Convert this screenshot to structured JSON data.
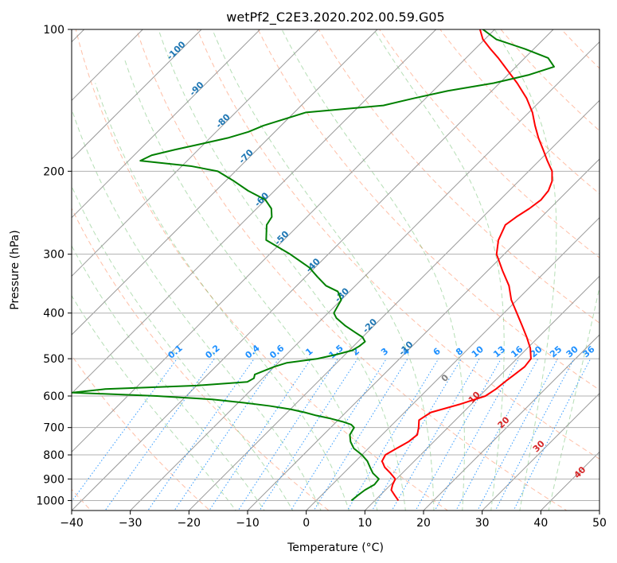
{
  "chart_data": {
    "type": "line",
    "title": "wetPf2_C2E3.2020.202.00.59.G05",
    "xlabel": "Temperature (°C)",
    "ylabel": "Pressure (hPa)",
    "xlim": [
      -40,
      50
    ],
    "ylim": [
      1050,
      100
    ],
    "y_scale": "log",
    "x_ticks": [
      -40,
      -30,
      -20,
      -10,
      0,
      10,
      20,
      30,
      40,
      50
    ],
    "y_ticks": [
      100,
      200,
      300,
      400,
      500,
      600,
      700,
      800,
      900,
      1000
    ],
    "grid": true,
    "skew_factor": 1.0,
    "series": [
      {
        "role": "temperature",
        "color": "#ff0000",
        "pressure": [
          1000,
          975,
          950,
          925,
          900,
          875,
          850,
          825,
          800,
          775,
          750,
          725,
          700,
          675,
          650,
          625,
          600,
          580,
          560,
          540,
          520,
          500,
          475,
          450,
          425,
          400,
          375,
          350,
          325,
          300,
          280,
          260,
          250,
          240,
          230,
          220,
          210,
          200,
          190,
          180,
          170,
          160,
          150,
          140,
          130,
          120,
          115,
          110,
          105,
          100
        ],
        "temperature": [
          14.0,
          12.5,
          11.0,
          10.3,
          9.8,
          8.0,
          6.0,
          4.5,
          4.0,
          4.8,
          5.7,
          6.0,
          5.0,
          3.8,
          4.5,
          8.0,
          11.0,
          11.6,
          11.9,
          12.3,
          12.7,
          12.4,
          10.5,
          8.0,
          5.2,
          2.2,
          -1.0,
          -3.8,
          -7.5,
          -11.3,
          -13.4,
          -14.8,
          -14.3,
          -13.5,
          -13.0,
          -13.3,
          -14.3,
          -16.0,
          -18.6,
          -21.2,
          -24.0,
          -26.7,
          -29.4,
          -32.8,
          -37.0,
          -41.9,
          -44.5,
          -47.4,
          -50.3,
          -52.5
        ]
      },
      {
        "role": "dewpoint",
        "color": "#008000",
        "pressure": [
          1000,
          975,
          950,
          925,
          900,
          875,
          850,
          825,
          800,
          775,
          750,
          725,
          700,
          690,
          680,
          670,
          660,
          650,
          640,
          630,
          620,
          610,
          600,
          590,
          580,
          570,
          560,
          550,
          540,
          530,
          520,
          510,
          500,
          490,
          480,
          470,
          460,
          450,
          440,
          425,
          410,
          400,
          390,
          375,
          360,
          350,
          335,
          320,
          300,
          280,
          260,
          250,
          240,
          230,
          220,
          210,
          200,
          195,
          190,
          185,
          180,
          175,
          170,
          165,
          160,
          150,
          145,
          140,
          135,
          130,
          125,
          120,
          115,
          110,
          105,
          100
        ],
        "dewpoint": [
          6.0,
          6.2,
          6.5,
          7.2,
          7.0,
          5.0,
          3.5,
          2.0,
          0.0,
          -2.5,
          -4.2,
          -5.5,
          -6.0,
          -7.0,
          -9.0,
          -11.5,
          -14.5,
          -17.0,
          -20.0,
          -24.0,
          -29.0,
          -35.0,
          -45.0,
          -60.0,
          -55.0,
          -40.0,
          -32.0,
          -31.5,
          -32.0,
          -31.0,
          -30.0,
          -28.5,
          -24.0,
          -21.5,
          -19.5,
          -19.0,
          -18.8,
          -20.0,
          -22.0,
          -25.0,
          -27.7,
          -29.0,
          -29.4,
          -30.0,
          -32.0,
          -35.0,
          -38.0,
          -41.0,
          -46.5,
          -53.0,
          -55.5,
          -56.0,
          -57.5,
          -60.0,
          -64.5,
          -68.5,
          -73.0,
          -78.5,
          -88.0,
          -87.0,
          -84.0,
          -80.5,
          -77.0,
          -74.5,
          -73.0,
          -68.0,
          -56.0,
          -52.0,
          -47.5,
          -41.0,
          -36.5,
          -33.5,
          -36.0,
          -41.5,
          -48.0,
          -52.0
        ]
      }
    ],
    "dry_adiabat_theta_c": [
      -100,
      -80,
      -60,
      -40,
      -20,
      0,
      20,
      40,
      60,
      80,
      100,
      120,
      140,
      160,
      180,
      200,
      220,
      240,
      260,
      280
    ],
    "moist_adiabat_temps_c": [
      -15,
      -10,
      -5,
      0,
      5,
      10,
      15,
      20,
      25,
      30,
      35,
      40
    ],
    "mixing_ratio_lines_gkg": [
      0.1,
      0.2,
      0.4,
      0.6,
      1,
      1.5,
      2,
      3,
      4,
      6,
      8,
      10,
      13,
      16,
      20,
      25,
      30,
      36
    ],
    "isotherm_labels": [
      "-100",
      "-90",
      "-80",
      "-70",
      "-60",
      "-50",
      "-40",
      "-30",
      "-20",
      "-10"
    ],
    "mixing_ratio_labels": [
      "0.1",
      "0.2",
      "0.4",
      "0.6",
      "1",
      "1.5",
      "2",
      "3",
      "4",
      "6",
      "8",
      "10",
      "13",
      "16",
      "20",
      "25",
      "30",
      "36"
    ],
    "moist_adiabat_labels": [
      "0",
      "10",
      "20",
      "30",
      "40"
    ],
    "colors": {
      "temperature": "#ff0000",
      "dewpoint": "#008000",
      "isotherm": "#999999",
      "dry_adiabat": "#ff7f50",
      "moist_adiabat": "#2ca02c",
      "mixing_ratio": "#1e90ff",
      "isotherm_label": "#1f77b4",
      "mixing_label": "#1e90ff",
      "moist_label": "#d62728"
    }
  }
}
